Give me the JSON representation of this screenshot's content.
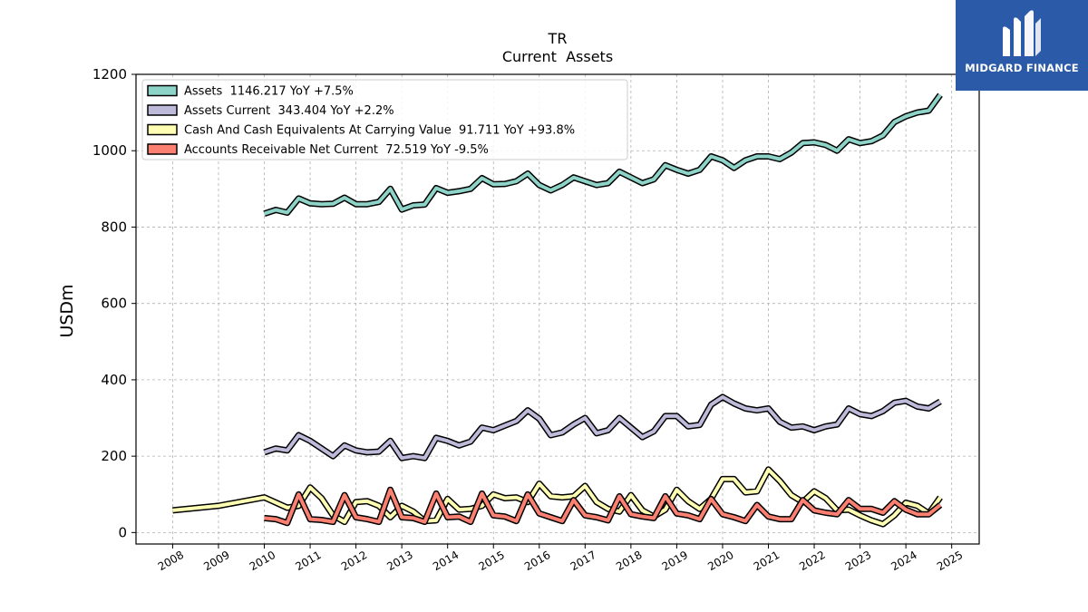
{
  "brand": {
    "name": "MIDGARD FINANCE"
  },
  "chart_data": {
    "type": "line",
    "title": "TR",
    "subtitle": "Current  Assets",
    "ylabel": "USDm",
    "xlabel": "",
    "xlim": [
      2007.2,
      2025.6
    ],
    "ylim": [
      -30,
      1200
    ],
    "x_ticks": [
      2008,
      2009,
      2010,
      2011,
      2012,
      2013,
      2014,
      2015,
      2016,
      2017,
      2018,
      2019,
      2020,
      2021,
      2022,
      2023,
      2024,
      2025
    ],
    "y_ticks": [
      0,
      200,
      400,
      600,
      800,
      1000,
      1200
    ],
    "grid": true,
    "legend_position": "top-left",
    "series": [
      {
        "name": "Assets  1146.217 YoY +7.5%",
        "color": "#8dd3c7",
        "points": [
          [
            2010.0,
            835
          ],
          [
            2010.25,
            845
          ],
          [
            2010.5,
            838
          ],
          [
            2010.75,
            875
          ],
          [
            2011.0,
            862
          ],
          [
            2011.25,
            860
          ],
          [
            2011.5,
            861
          ],
          [
            2011.75,
            877
          ],
          [
            2012.0,
            860
          ],
          [
            2012.25,
            860
          ],
          [
            2012.5,
            866
          ],
          [
            2012.75,
            900
          ],
          [
            2013.0,
            846
          ],
          [
            2013.25,
            857
          ],
          [
            2013.5,
            859
          ],
          [
            2013.75,
            902
          ],
          [
            2014.0,
            890
          ],
          [
            2014.25,
            894
          ],
          [
            2014.5,
            900
          ],
          [
            2014.75,
            928
          ],
          [
            2015.0,
            912
          ],
          [
            2015.25,
            913
          ],
          [
            2015.5,
            920
          ],
          [
            2015.75,
            940
          ],
          [
            2016.0,
            910
          ],
          [
            2016.25,
            896
          ],
          [
            2016.5,
            910
          ],
          [
            2016.75,
            930
          ],
          [
            2017.0,
            920
          ],
          [
            2017.25,
            910
          ],
          [
            2017.5,
            915
          ],
          [
            2017.75,
            945
          ],
          [
            2018.0,
            930
          ],
          [
            2018.25,
            915
          ],
          [
            2018.5,
            925
          ],
          [
            2018.75,
            962
          ],
          [
            2019.0,
            950
          ],
          [
            2019.25,
            940
          ],
          [
            2019.5,
            950
          ],
          [
            2019.75,
            985
          ],
          [
            2020.0,
            975
          ],
          [
            2020.25,
            955
          ],
          [
            2020.5,
            975
          ],
          [
            2020.75,
            985
          ],
          [
            2021.0,
            985
          ],
          [
            2021.25,
            978
          ],
          [
            2021.5,
            995
          ],
          [
            2021.75,
            1020
          ],
          [
            2022.0,
            1022
          ],
          [
            2022.25,
            1015
          ],
          [
            2022.5,
            1000
          ],
          [
            2022.75,
            1030
          ],
          [
            2023.0,
            1020
          ],
          [
            2023.25,
            1025
          ],
          [
            2023.5,
            1040
          ],
          [
            2023.75,
            1075
          ],
          [
            2024.0,
            1090
          ],
          [
            2024.25,
            1100
          ],
          [
            2024.5,
            1105
          ],
          [
            2024.75,
            1146
          ]
        ]
      },
      {
        "name": "Assets Current  343.404 YoY +2.2%",
        "color": "#bebada",
        "points": [
          [
            2010.0,
            210
          ],
          [
            2010.25,
            220
          ],
          [
            2010.5,
            215
          ],
          [
            2010.75,
            255
          ],
          [
            2011.0,
            240
          ],
          [
            2011.25,
            220
          ],
          [
            2011.5,
            200
          ],
          [
            2011.75,
            228
          ],
          [
            2012.0,
            215
          ],
          [
            2012.25,
            210
          ],
          [
            2012.5,
            212
          ],
          [
            2012.75,
            240
          ],
          [
            2013.0,
            195
          ],
          [
            2013.25,
            200
          ],
          [
            2013.5,
            195
          ],
          [
            2013.75,
            248
          ],
          [
            2014.0,
            240
          ],
          [
            2014.25,
            228
          ],
          [
            2014.5,
            238
          ],
          [
            2014.75,
            275
          ],
          [
            2015.0,
            268
          ],
          [
            2015.25,
            280
          ],
          [
            2015.5,
            292
          ],
          [
            2015.75,
            320
          ],
          [
            2016.0,
            298
          ],
          [
            2016.25,
            255
          ],
          [
            2016.5,
            262
          ],
          [
            2016.75,
            283
          ],
          [
            2017.0,
            300
          ],
          [
            2017.25,
            260
          ],
          [
            2017.5,
            268
          ],
          [
            2017.75,
            300
          ],
          [
            2018.0,
            275
          ],
          [
            2018.25,
            250
          ],
          [
            2018.5,
            265
          ],
          [
            2018.75,
            305
          ],
          [
            2019.0,
            305
          ],
          [
            2019.25,
            278
          ],
          [
            2019.5,
            282
          ],
          [
            2019.75,
            335
          ],
          [
            2020.0,
            355
          ],
          [
            2020.25,
            338
          ],
          [
            2020.5,
            325
          ],
          [
            2020.75,
            320
          ],
          [
            2021.0,
            325
          ],
          [
            2021.25,
            290
          ],
          [
            2021.5,
            275
          ],
          [
            2021.75,
            278
          ],
          [
            2022.0,
            268
          ],
          [
            2022.25,
            278
          ],
          [
            2022.5,
            283
          ],
          [
            2022.75,
            325
          ],
          [
            2023.0,
            310
          ],
          [
            2023.25,
            305
          ],
          [
            2023.5,
            318
          ],
          [
            2023.75,
            340
          ],
          [
            2024.0,
            345
          ],
          [
            2024.25,
            330
          ],
          [
            2024.5,
            325
          ],
          [
            2024.75,
            343
          ]
        ]
      },
      {
        "name": "Cash And Cash Equivalents At Carrying Value  91.711 YoY +93.8%",
        "color": "#ffffb3",
        "points": [
          [
            2008.0,
            58
          ],
          [
            2009.0,
            70
          ],
          [
            2010.0,
            92
          ],
          [
            2010.5,
            65
          ],
          [
            2010.75,
            70
          ],
          [
            2011.0,
            118
          ],
          [
            2011.25,
            90
          ],
          [
            2011.5,
            45
          ],
          [
            2011.75,
            28
          ],
          [
            2012.0,
            80
          ],
          [
            2012.25,
            82
          ],
          [
            2012.5,
            70
          ],
          [
            2012.75,
            40
          ],
          [
            2013.0,
            70
          ],
          [
            2013.25,
            55
          ],
          [
            2013.5,
            30
          ],
          [
            2013.75,
            32
          ],
          [
            2014.0,
            88
          ],
          [
            2014.25,
            60
          ],
          [
            2014.5,
            62
          ],
          [
            2014.75,
            70
          ],
          [
            2015.0,
            100
          ],
          [
            2015.25,
            90
          ],
          [
            2015.5,
            92
          ],
          [
            2015.75,
            80
          ],
          [
            2016.0,
            128
          ],
          [
            2016.25,
            95
          ],
          [
            2016.5,
            92
          ],
          [
            2016.75,
            95
          ],
          [
            2017.0,
            122
          ],
          [
            2017.25,
            80
          ],
          [
            2017.5,
            62
          ],
          [
            2017.75,
            55
          ],
          [
            2018.0,
            98
          ],
          [
            2018.25,
            58
          ],
          [
            2018.5,
            42
          ],
          [
            2018.75,
            60
          ],
          [
            2019.0,
            112
          ],
          [
            2019.25,
            82
          ],
          [
            2019.5,
            62
          ],
          [
            2019.75,
            88
          ],
          [
            2020.0,
            140
          ],
          [
            2020.25,
            140
          ],
          [
            2020.5,
            105
          ],
          [
            2020.75,
            108
          ],
          [
            2021.0,
            165
          ],
          [
            2021.25,
            135
          ],
          [
            2021.5,
            98
          ],
          [
            2021.75,
            80
          ],
          [
            2022.0,
            108
          ],
          [
            2022.25,
            90
          ],
          [
            2022.5,
            58
          ],
          [
            2022.75,
            60
          ],
          [
            2023.0,
            45
          ],
          [
            2023.25,
            32
          ],
          [
            2023.5,
            22
          ],
          [
            2023.75,
            45
          ],
          [
            2024.0,
            78
          ],
          [
            2024.25,
            70
          ],
          [
            2024.5,
            50
          ],
          [
            2024.75,
            92
          ]
        ]
      },
      {
        "name": "Accounts Receivable Net Current  72.519 YoY -9.5%",
        "color": "#fb8072",
        "points": [
          [
            2010.0,
            38
          ],
          [
            2010.25,
            35
          ],
          [
            2010.5,
            25
          ],
          [
            2010.75,
            100
          ],
          [
            2011.0,
            35
          ],
          [
            2011.25,
            33
          ],
          [
            2011.5,
            28
          ],
          [
            2011.75,
            98
          ],
          [
            2012.0,
            40
          ],
          [
            2012.25,
            35
          ],
          [
            2012.5,
            28
          ],
          [
            2012.75,
            112
          ],
          [
            2013.0,
            40
          ],
          [
            2013.25,
            38
          ],
          [
            2013.5,
            28
          ],
          [
            2013.75,
            102
          ],
          [
            2014.0,
            40
          ],
          [
            2014.25,
            42
          ],
          [
            2014.5,
            28
          ],
          [
            2014.75,
            102
          ],
          [
            2015.0,
            45
          ],
          [
            2015.25,
            42
          ],
          [
            2015.5,
            30
          ],
          [
            2015.75,
            100
          ],
          [
            2016.0,
            50
          ],
          [
            2016.25,
            40
          ],
          [
            2016.5,
            30
          ],
          [
            2016.75,
            85
          ],
          [
            2017.0,
            45
          ],
          [
            2017.25,
            40
          ],
          [
            2017.5,
            32
          ],
          [
            2017.75,
            95
          ],
          [
            2018.0,
            48
          ],
          [
            2018.25,
            42
          ],
          [
            2018.5,
            38
          ],
          [
            2018.75,
            95
          ],
          [
            2019.0,
            50
          ],
          [
            2019.25,
            45
          ],
          [
            2019.5,
            35
          ],
          [
            2019.75,
            88
          ],
          [
            2020.0,
            48
          ],
          [
            2020.25,
            40
          ],
          [
            2020.5,
            30
          ],
          [
            2020.75,
            72
          ],
          [
            2021.0,
            42
          ],
          [
            2021.25,
            35
          ],
          [
            2021.5,
            35
          ],
          [
            2021.75,
            85
          ],
          [
            2022.0,
            58
          ],
          [
            2022.25,
            52
          ],
          [
            2022.5,
            48
          ],
          [
            2022.75,
            85
          ],
          [
            2023.0,
            62
          ],
          [
            2023.25,
            62
          ],
          [
            2023.5,
            52
          ],
          [
            2023.75,
            82
          ],
          [
            2024.0,
            60
          ],
          [
            2024.25,
            48
          ],
          [
            2024.5,
            48
          ],
          [
            2024.75,
            72
          ]
        ]
      }
    ]
  }
}
